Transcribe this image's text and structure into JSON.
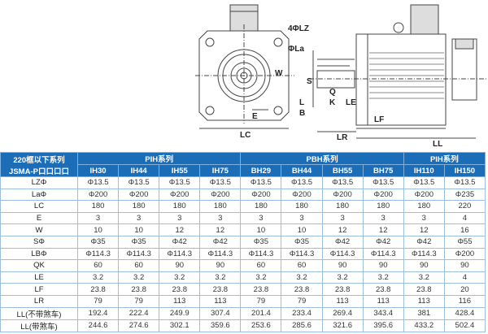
{
  "drawing": {
    "labels": {
      "lz": "4ΦLZ",
      "la": "ΦLa",
      "w": "W",
      "e": "E",
      "lc": "LC",
      "s": "S",
      "q": "Q",
      "k": "K",
      "l": "L",
      "b": "B",
      "le": "LE",
      "lf": "LF",
      "lr": "LR",
      "ll": "LL"
    }
  },
  "table": {
    "corner_line1": "220框以下系列",
    "corner_line2": "JSMA-P口口口口",
    "groups": [
      {
        "label": "PIH系列"
      },
      {
        "label": "PBH系列"
      },
      {
        "label": "PIH系列"
      }
    ],
    "models": [
      "IH30",
      "IH44",
      "IH55",
      "IH75",
      "BH29",
      "BH44",
      "BH55",
      "BH75",
      "IH110",
      "IH150"
    ],
    "rows": [
      {
        "label": "LZΦ",
        "values": [
          "Φ13.5",
          "Φ13.5",
          "Φ13.5",
          "Φ13.5",
          "Φ13.5",
          "Φ13.5",
          "Φ13.5",
          "Φ13.5",
          "Φ13.5",
          "Φ13.5"
        ]
      },
      {
        "label": "LaΦ",
        "values": [
          "Φ200",
          "Φ200",
          "Φ200",
          "Φ200",
          "Φ200",
          "Φ200",
          "Φ200",
          "Φ200",
          "Φ200",
          "Φ235"
        ]
      },
      {
        "label": "LC",
        "values": [
          "180",
          "180",
          "180",
          "180",
          "180",
          "180",
          "180",
          "180",
          "180",
          "220"
        ]
      },
      {
        "label": "E",
        "values": [
          "3",
          "3",
          "3",
          "3",
          "3",
          "3",
          "3",
          "3",
          "3",
          "4"
        ]
      },
      {
        "label": "W",
        "values": [
          "10",
          "10",
          "12",
          "12",
          "10",
          "10",
          "12",
          "12",
          "12",
          "16"
        ]
      },
      {
        "label": "SΦ",
        "values": [
          "Φ35",
          "Φ35",
          "Φ42",
          "Φ42",
          "Φ35",
          "Φ35",
          "Φ42",
          "Φ42",
          "Φ42",
          "Φ55"
        ]
      },
      {
        "label": "LBΦ",
        "values": [
          "Φ114.3",
          "Φ114.3",
          "Φ114.3",
          "Φ114.3",
          "Φ114.3",
          "Φ114.3",
          "Φ114.3",
          "Φ114.3",
          "Φ114.3",
          "Φ200"
        ]
      },
      {
        "label": "QK",
        "values": [
          "60",
          "60",
          "90",
          "90",
          "60",
          "60",
          "90",
          "90",
          "90",
          "90"
        ]
      },
      {
        "label": "LE",
        "values": [
          "3.2",
          "3.2",
          "3.2",
          "3.2",
          "3.2",
          "3.2",
          "3.2",
          "3.2",
          "3.2",
          "4"
        ]
      },
      {
        "label": "LF",
        "values": [
          "23.8",
          "23.8",
          "23.8",
          "23.8",
          "23.8",
          "23.8",
          "23.8",
          "23.8",
          "23.8",
          "20"
        ]
      },
      {
        "label": "LR",
        "values": [
          "79",
          "79",
          "113",
          "113",
          "79",
          "79",
          "113",
          "113",
          "113",
          "116"
        ]
      },
      {
        "label": "LL(不带煞车)",
        "values": [
          "192.4",
          "222.4",
          "249.9",
          "307.4",
          "201.4",
          "233.4",
          "269.4",
          "343.4",
          "381",
          "428.4"
        ]
      },
      {
        "label": "LL(带煞车)",
        "values": [
          "244.6",
          "274.6",
          "302.1",
          "359.6",
          "253.6",
          "285.6",
          "321.6",
          "395.6",
          "433.2",
          "502.4"
        ]
      }
    ]
  },
  "colors": {
    "header": "#1c6db8",
    "grid": "#9bbfe0"
  }
}
